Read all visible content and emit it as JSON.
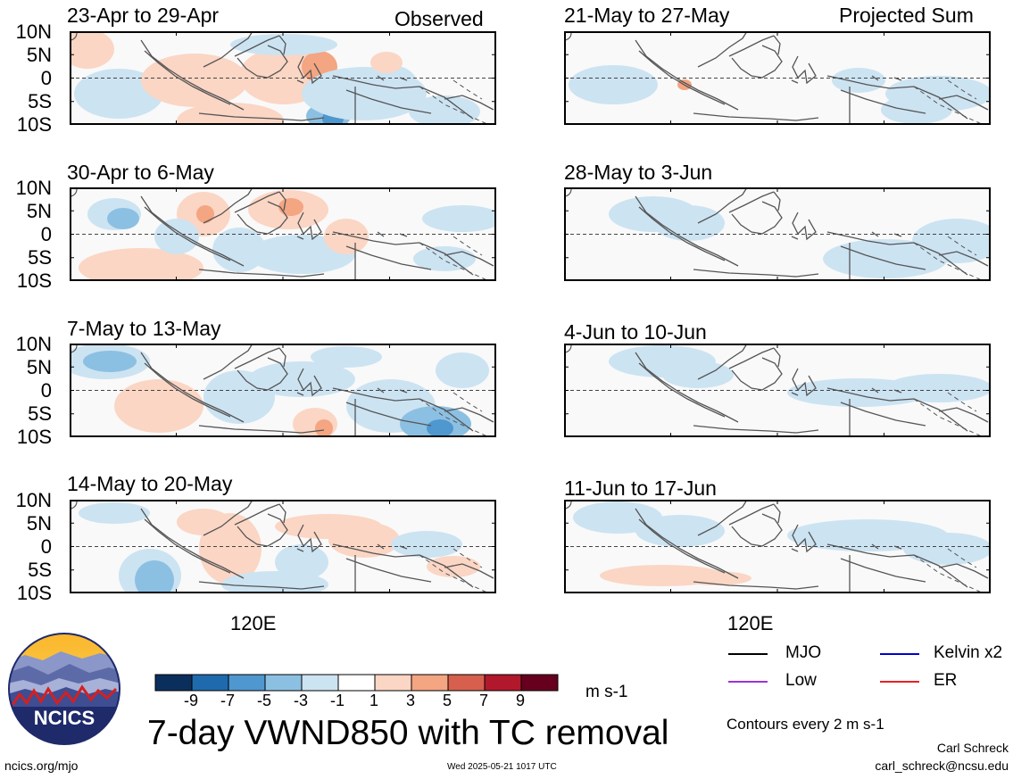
{
  "column_titles": {
    "left": "Observed",
    "right": "Projected Sum"
  },
  "lat_labels": [
    "10N",
    "5N",
    "0",
    "5S",
    "10S"
  ],
  "panels_left": [
    {
      "title": "23-Apr to 29-Apr"
    },
    {
      "title": "30-Apr to 6-May"
    },
    {
      "title": "7-May to 13-May"
    },
    {
      "title": "14-May to 20-May"
    }
  ],
  "panels_right": [
    {
      "title": "21-May to 27-May"
    },
    {
      "title": "28-May to 3-Jun"
    },
    {
      "title": "4-Jun to 10-Jun"
    },
    {
      "title": "11-Jun to 17-Jun"
    }
  ],
  "x_label": "120E",
  "colorbar": {
    "labels": [
      "-9",
      "-7",
      "-5",
      "-3",
      "-1",
      "1",
      "3",
      "5",
      "7",
      "9"
    ],
    "colors": [
      "#0b2f5c",
      "#1f6aad",
      "#4f97cf",
      "#8cc0e2",
      "#cce3f2",
      "#ffffff",
      "#fbd6c4",
      "#f4a582",
      "#d6604d",
      "#b2182b",
      "#67001f"
    ],
    "unit": "m s-1"
  },
  "legend": [
    {
      "label": "MJO",
      "color": "#000000"
    },
    {
      "label": "Kelvin x2",
      "color": "#0000cc"
    },
    {
      "label": "Low",
      "color": "#9933dd"
    },
    {
      "label": "ER",
      "color": "#e82020"
    }
  ],
  "main_title": "7-day VWND850 with TC removal",
  "contours_note": "Contours every 2 m s-1",
  "logo_text": "NCICS",
  "url": "ncics.org/mjo",
  "timestamp": "Wed 2025-05-21 1017 UTC",
  "author": "Carl Schreck",
  "email": "carl_schreck@ncsu.edu"
}
